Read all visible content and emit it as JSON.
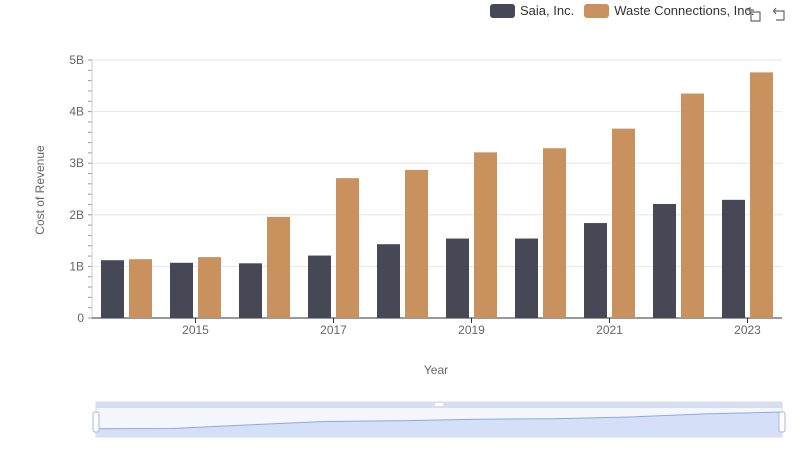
{
  "chart_data": {
    "type": "bar",
    "x": [
      2014,
      2015,
      2016,
      2017,
      2018,
      2019,
      2020,
      2021,
      2022,
      2023
    ],
    "series": [
      {
        "name": "Saia, Inc.",
        "color": "#474856",
        "values": [
          1.12,
          1.07,
          1.06,
          1.21,
          1.43,
          1.54,
          1.54,
          1.84,
          2.21,
          2.29
        ]
      },
      {
        "name": "Waste Connections, Inc.",
        "color": "#c8915e",
        "values": [
          1.14,
          1.18,
          1.96,
          2.71,
          2.87,
          3.21,
          3.29,
          3.67,
          4.35,
          4.76
        ]
      }
    ],
    "xlabel": "Year",
    "ylabel": "Cost of Revenue",
    "y_unit": "B",
    "ylim": [
      0,
      5
    ],
    "y_ticks": [
      "0",
      "1B",
      "2B",
      "3B",
      "4B",
      "5B"
    ],
    "x_tick_labels": [
      "2015",
      "2017",
      "2019",
      "2021",
      "2023"
    ],
    "grid": true,
    "legend_position": "top-right",
    "toolbox_icons": [
      "zoom-icon",
      "reset-zoom-icon"
    ],
    "datazoom": {
      "start": 0,
      "end": 100
    }
  }
}
